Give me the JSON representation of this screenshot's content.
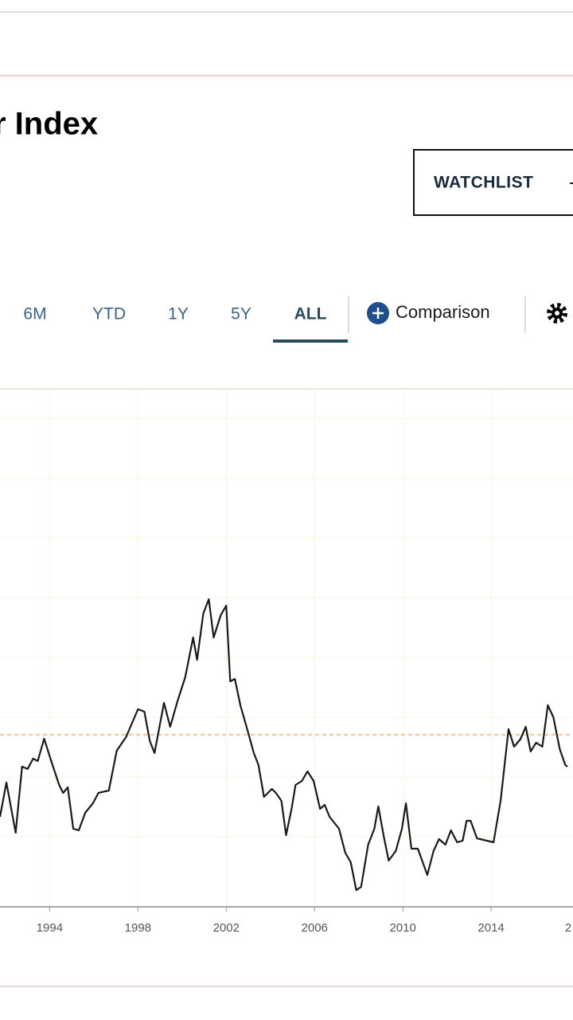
{
  "header": {
    "title": "r Index",
    "watchlist": "WATCHLIST"
  },
  "ranges": [
    "6M",
    "YTD",
    "1Y",
    "5Y",
    "ALL"
  ],
  "active_range": 4,
  "comparison": "Comparison",
  "chart_data": {
    "type": "line",
    "color": "#1a1a1a",
    "x": [
      1991.75,
      1992.04,
      1992.46,
      1992.75,
      1993.0,
      1993.25,
      1993.46,
      1993.75,
      1994.07,
      1994.43,
      1994.61,
      1994.82,
      1995.07,
      1995.32,
      1995.61,
      1995.96,
      1996.21,
      1996.68,
      1997.04,
      1997.46,
      1998.0,
      1998.29,
      1998.54,
      1998.75,
      1999.18,
      1999.46,
      1999.79,
      2000.14,
      2000.5,
      2000.68,
      2000.96,
      2001.21,
      2001.43,
      2001.75,
      2002.0,
      2002.18,
      2002.39,
      2002.64,
      2003.0,
      2003.25,
      2003.46,
      2003.71,
      2004.07,
      2004.25,
      2004.5,
      2004.71,
      2004.96,
      2005.14,
      2005.43,
      2005.68,
      2005.96,
      2006.25,
      2006.46,
      2006.68,
      2007.11,
      2007.39,
      2007.64,
      2007.89,
      2008.11,
      2008.43,
      2008.71,
      2008.89,
      2009.14,
      2009.36,
      2009.68,
      2009.96,
      2010.14,
      2010.39,
      2010.68,
      2011.11,
      2011.39,
      2011.64,
      2011.93,
      2012.18,
      2012.46,
      2012.71,
      2012.89,
      2013.07,
      2013.36,
      2014.11,
      2014.43,
      2014.79,
      2015.04,
      2015.32,
      2015.57,
      2015.79,
      2016.04,
      2016.32,
      2016.57,
      2016.82,
      2017.11,
      2017.36,
      2017.46
    ],
    "values": [
      113,
      156,
      93,
      176,
      173,
      186,
      183,
      211,
      183,
      153,
      143,
      150,
      98,
      96,
      118,
      130,
      143,
      146,
      196,
      213,
      248,
      245,
      208,
      193,
      256,
      226,
      258,
      288,
      338,
      310,
      368,
      386,
      338,
      366,
      378,
      283,
      286,
      253,
      218,
      193,
      178,
      138,
      148,
      143,
      133,
      90,
      123,
      153,
      158,
      170,
      158,
      123,
      128,
      113,
      98,
      68,
      56,
      21,
      25,
      78,
      98,
      126,
      88,
      58,
      70,
      98,
      130,
      73,
      73,
      40,
      70,
      85,
      78,
      96,
      81,
      83,
      108,
      108,
      86,
      81,
      133,
      223,
      201,
      210,
      226,
      195,
      206,
      201,
      253,
      238,
      198,
      178,
      176
    ],
    "xlim": [
      1991.75,
      2017.71
    ],
    "ylim": [
      0,
      650
    ],
    "xticks": [
      1994,
      1998,
      2002,
      2006,
      2010,
      2014,
      {
        "value": 2018,
        "label": "2"
      }
    ],
    "grid": true,
    "reference_line": 216,
    "reference_color": "#f0b070"
  }
}
